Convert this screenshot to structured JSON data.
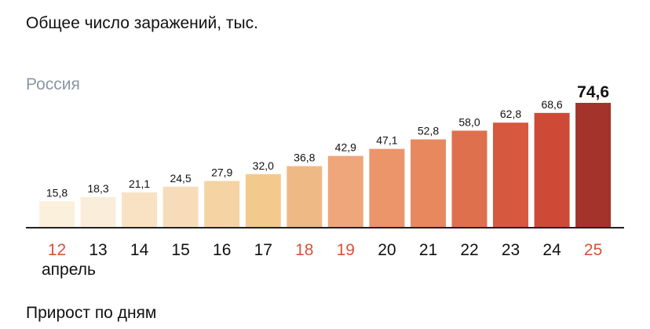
{
  "chart_data": {
    "type": "bar",
    "title": "Общее число заражений, тыс.",
    "subtitle": "Россия",
    "categories": [
      "12",
      "13",
      "14",
      "15",
      "16",
      "17",
      "18",
      "19",
      "20",
      "21",
      "22",
      "23",
      "24",
      "25"
    ],
    "values": [
      15.8,
      18.3,
      21.1,
      24.5,
      27.9,
      32.0,
      36.8,
      42.9,
      47.1,
      52.8,
      58.0,
      62.8,
      68.6,
      74.6
    ],
    "value_labels": [
      "15,8",
      "18,3",
      "21,1",
      "24,5",
      "27,9",
      "32,0",
      "36,8",
      "42,9",
      "47,1",
      "52,8",
      "58,0",
      "62,8",
      "68,6",
      "74,6"
    ],
    "highlighted_category": "25",
    "weekend_categories": [
      "12",
      "18",
      "19",
      "25"
    ],
    "month_label": "апрель",
    "ylim": [
      0,
      74.6
    ],
    "grid": false,
    "colors": [
      "#fbf0dc",
      "#faeedb",
      "#f8e2c3",
      "#f7dcba",
      "#f5d3a3",
      "#f3ca8d",
      "#efb985",
      "#eea67a",
      "#ec946a",
      "#e8885f",
      "#de704e",
      "#d5583f",
      "#cd4a37",
      "#a3332b"
    ],
    "weekend_color": "#d8523a",
    "axis_color": "#222222"
  },
  "footer": "Прирост по дням"
}
